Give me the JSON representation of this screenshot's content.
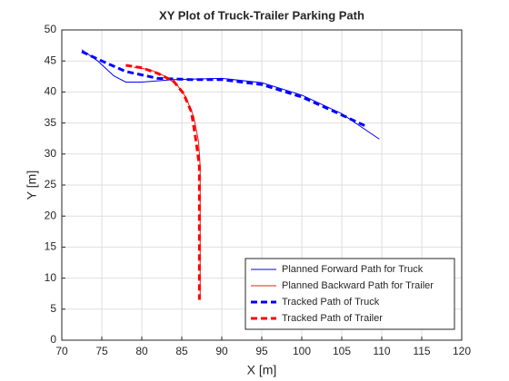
{
  "chart_data": {
    "type": "line",
    "title": "XY Plot of Truck-Trailer Parking Path",
    "x_label": "X [m]",
    "y_label": "Y [m]",
    "xlim": [
      70,
      120
    ],
    "xticks": [
      70,
      75,
      80,
      85,
      90,
      95,
      100,
      105,
      110,
      115,
      120
    ],
    "ylim": [
      0,
      50
    ],
    "yticks": [
      0,
      5,
      10,
      15,
      20,
      25,
      30,
      35,
      40,
      45,
      50
    ],
    "grid": true,
    "legend": "lower right",
    "series": [
      {
        "name": "Planned Forward Path for Truck",
        "color": "#0000ff",
        "dash": false,
        "x": [
          72.5,
          74.5,
          76.5,
          78,
          80,
          84,
          90,
          95,
          100,
          105,
          109.7
        ],
        "values": [
          46.8,
          45,
          42.6,
          41.6,
          41.6,
          42,
          42.2,
          41.5,
          39.5,
          36.5,
          32.4
        ]
      },
      {
        "name": "Planned Backward Path for Trailer",
        "color": "#e0201a",
        "dash": false,
        "x": [
          79,
          81,
          83,
          84.5,
          85.5,
          86.5,
          87.1,
          87.3,
          87.3,
          87.3
        ],
        "values": [
          44,
          43.6,
          42.5,
          41,
          39.2,
          36,
          32,
          28,
          20,
          6.5
        ]
      },
      {
        "name": "Tracked Path of Truck",
        "color": "#0000ff",
        "dash": true,
        "x": [
          72.5,
          75,
          78,
          82,
          86,
          90,
          95,
          100,
          105,
          108
        ],
        "values": [
          46.5,
          45,
          43.3,
          42.2,
          42,
          42,
          41.2,
          39.2,
          36.3,
          34.5
        ]
      },
      {
        "name": "Tracked Path of Trailer",
        "color": "#ff0000",
        "dash": true,
        "x": [
          78,
          80,
          82,
          84,
          85.2,
          86.2,
          86.8,
          87.2,
          87.2,
          87.2
        ],
        "values": [
          44.3,
          43.9,
          43,
          41.7,
          39.8,
          36.8,
          32,
          28,
          20,
          6.5
        ]
      }
    ]
  }
}
